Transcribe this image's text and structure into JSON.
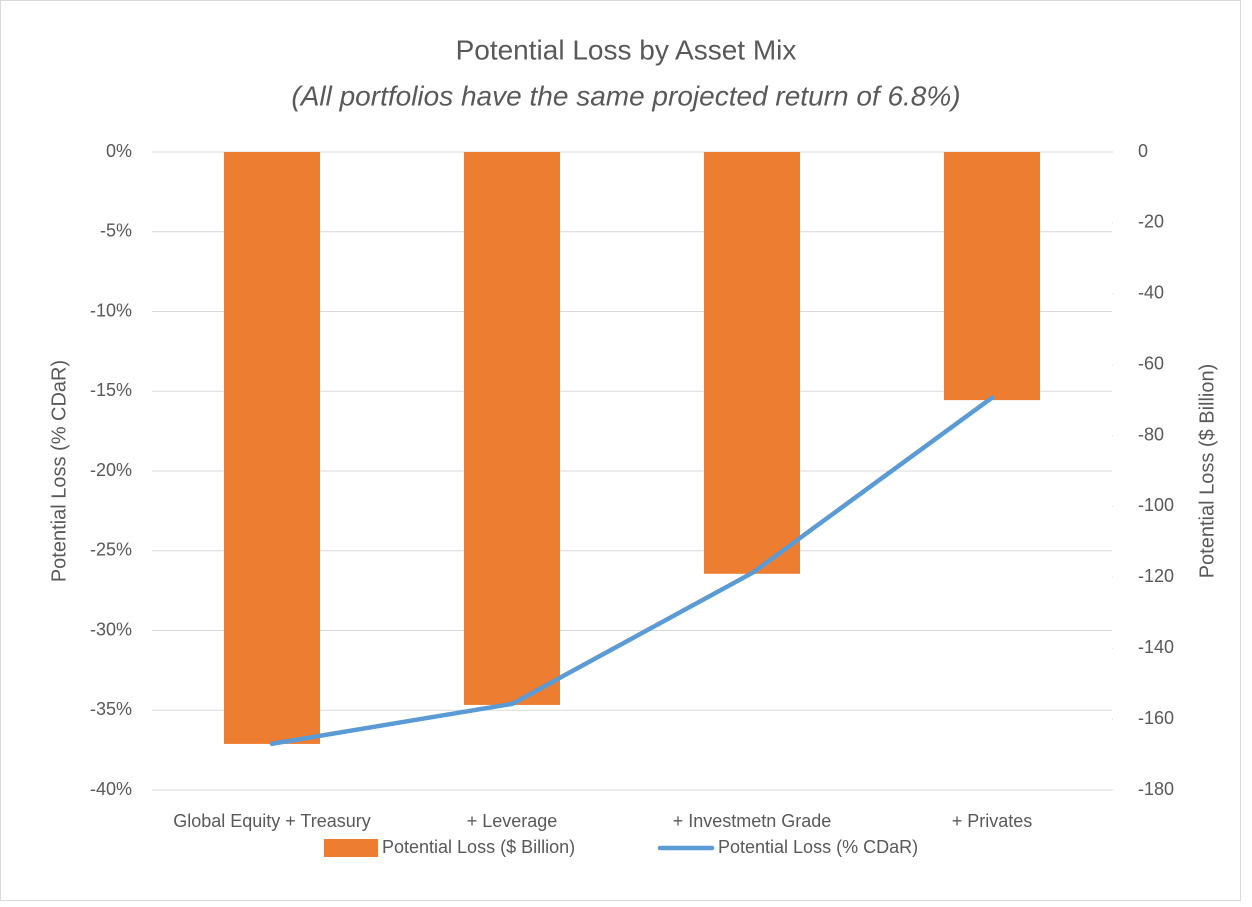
{
  "chart_data": {
    "type": "combo",
    "title": "Potential Loss by Asset Mix",
    "subtitle": "(All portfolios have the same projected return of 6.8%)",
    "categories": [
      "Global Equity + Treasury",
      "+ Leverage",
      "+ Investmetn Grade",
      "+ Privates"
    ],
    "series": [
      {
        "name": "Potential Loss ($ Billion)",
        "type": "bar",
        "axis": "y2",
        "color": "#ed7d31",
        "values": [
          -167,
          -156,
          -119,
          -70
        ]
      },
      {
        "name": "Potential Loss (% CDaR)",
        "type": "line",
        "axis": "y",
        "color": "#5b9bd5",
        "values": [
          -37.1,
          -34.6,
          -26.4,
          -15.4
        ]
      }
    ],
    "ylabel": "Potential Loss (% CDaR)",
    "y2label": "Potential Loss ($ Billion)",
    "ylim": [
      -40,
      0
    ],
    "yticks": [
      {
        "value": 0,
        "label": "0%"
      },
      {
        "value": -5,
        "label": "-5%"
      },
      {
        "value": -10,
        "label": "-10%"
      },
      {
        "value": -15,
        "label": "-15%"
      },
      {
        "value": -20,
        "label": "-20%"
      },
      {
        "value": -25,
        "label": "-25%"
      },
      {
        "value": -30,
        "label": "-30%"
      },
      {
        "value": -35,
        "label": "-35%"
      },
      {
        "value": -40,
        "label": "-40%"
      }
    ],
    "y2lim": [
      -180,
      0
    ],
    "y2ticks": [
      0,
      -20,
      -40,
      -60,
      -80,
      -100,
      -120,
      -140,
      -160,
      -180
    ],
    "grid": true,
    "legend": "bottom"
  }
}
